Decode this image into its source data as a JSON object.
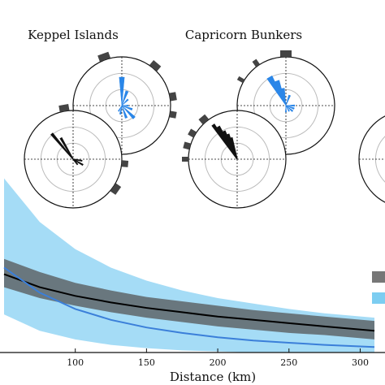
{
  "panels": [
    {
      "title": "Keppel Islands",
      "roses": [
        {
          "series": "blue",
          "center_angle_data": {
            "directions_deg": [
              0,
              20,
              45,
              90,
              110,
              135,
              160,
              190,
              210
            ],
            "lengths": [
              0.65,
              0.35,
              0.2,
              0.15,
              0.25,
              0.4,
              0.3,
              0.2,
              0.15
            ]
          }
        },
        {
          "series": "black",
          "center_angle_data": {
            "directions_deg": [
              320,
              330,
              100,
              120,
              140
            ],
            "lengths": [
              0.75,
              0.55,
              0.2,
              0.25,
              0.15
            ]
          }
        }
      ]
    },
    {
      "title": "Capricorn Bunkers",
      "roses": [
        {
          "series": "blue",
          "center_angle_data": {
            "directions_deg": [
              330,
              340,
              350,
              20,
              90,
              110,
              130,
              150,
              180
            ],
            "lengths": [
              0.75,
              0.6,
              0.4,
              0.25,
              0.2,
              0.2,
              0.2,
              0.15,
              0.15
            ]
          }
        },
        {
          "series": "black",
          "center_angle_data": {
            "directions_deg": [
              325,
              330,
              335,
              340,
              345
            ],
            "lengths": [
              0.95,
              0.85,
              0.7,
              0.6,
              0.5
            ]
          }
        }
      ]
    }
  ],
  "chart_data": {
    "type": "area",
    "xlabel": "Distance (km)",
    "ylabel": "",
    "xlim": [
      50,
      310
    ],
    "ylim": [
      0,
      1
    ],
    "x_ticks": [
      100,
      150,
      200,
      250,
      300
    ],
    "grid": false,
    "legend": "right, swatches only, labels cut off",
    "series": [
      {
        "name": "",
        "color": "#000000",
        "band_color": "#555555",
        "x": [
          50,
          75,
          100,
          125,
          150,
          175,
          200,
          225,
          250,
          275,
          310
        ],
        "values": [
          0.72,
          0.6,
          0.52,
          0.46,
          0.41,
          0.37,
          0.33,
          0.3,
          0.27,
          0.24,
          0.2
        ],
        "lower": [
          0.6,
          0.5,
          0.43,
          0.37,
          0.32,
          0.28,
          0.24,
          0.21,
          0.18,
          0.16,
          0.12
        ],
        "upper": [
          0.86,
          0.74,
          0.64,
          0.57,
          0.51,
          0.47,
          0.43,
          0.39,
          0.36,
          0.33,
          0.29
        ]
      },
      {
        "name": "",
        "color": "#3b7fd9",
        "band_color": "#5bc0ee",
        "x": [
          50,
          75,
          100,
          125,
          150,
          175,
          200,
          225,
          250,
          275,
          310
        ],
        "values": [
          0.78,
          0.55,
          0.4,
          0.3,
          0.23,
          0.18,
          0.14,
          0.11,
          0.09,
          0.07,
          0.05
        ],
        "lower": [
          0.35,
          0.2,
          0.12,
          0.07,
          0.04,
          0.02,
          0.01,
          0.0,
          0.0,
          0.0,
          0.0
        ],
        "upper": [
          1.6,
          1.2,
          0.95,
          0.78,
          0.66,
          0.57,
          0.5,
          0.45,
          0.4,
          0.36,
          0.32
        ]
      }
    ]
  }
}
